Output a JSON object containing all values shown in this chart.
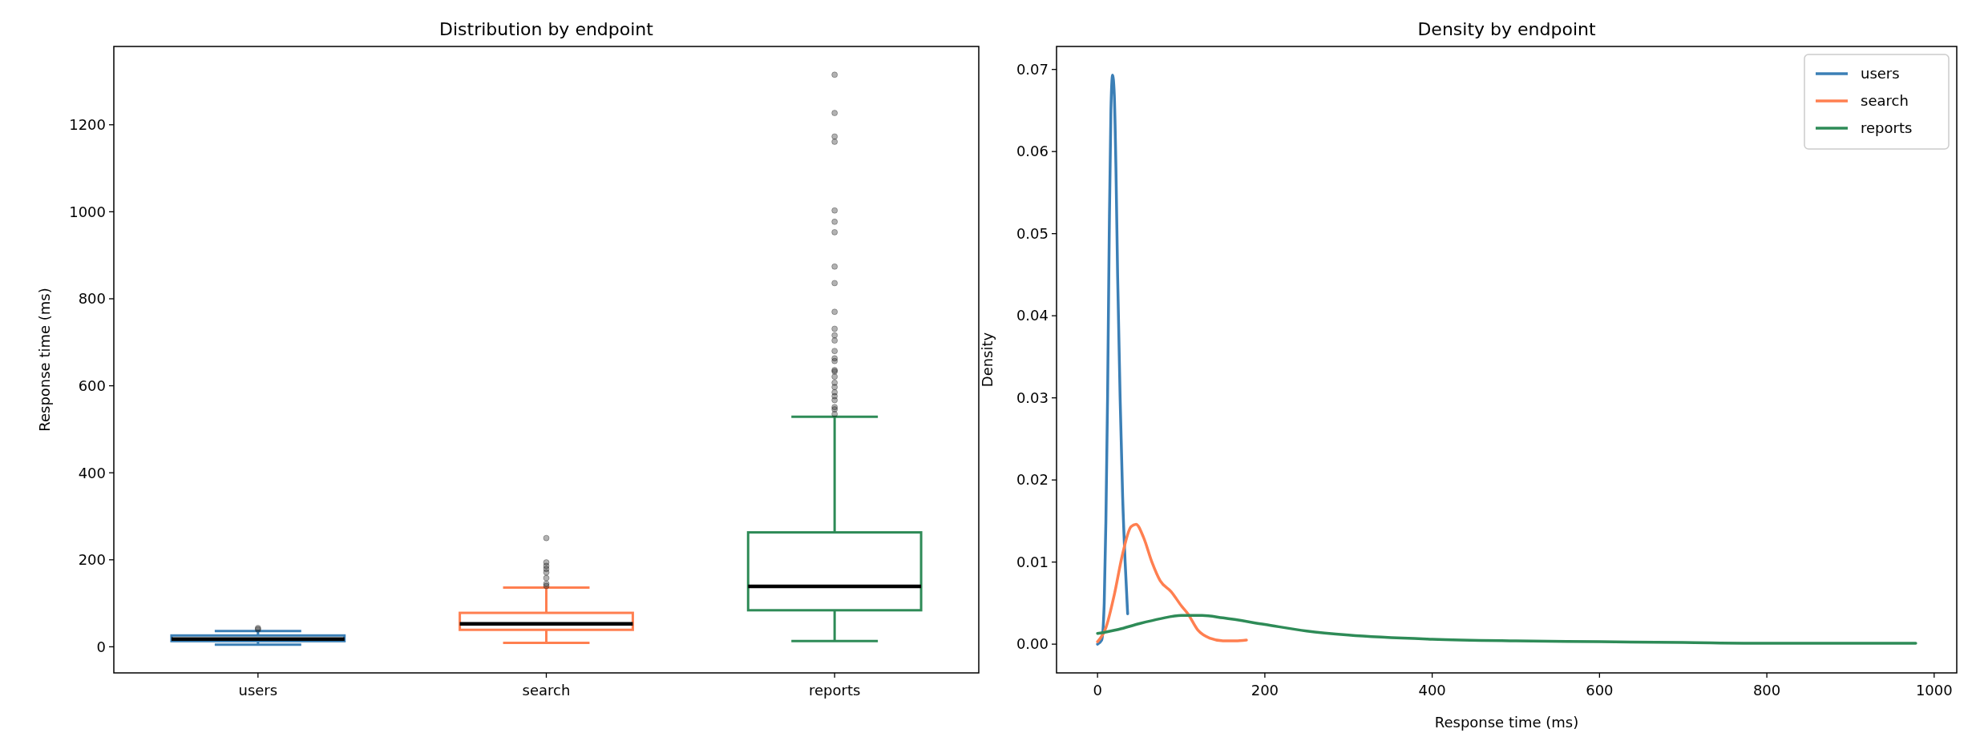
{
  "chart_data": [
    {
      "type": "box",
      "title": "Distribution by endpoint",
      "ylabel": "Response time (ms)",
      "categories": [
        "users",
        "search",
        "reports"
      ],
      "colors": [
        "#3b7fb6",
        "#ff7f50",
        "#2e8b57"
      ],
      "boxes": [
        {
          "low": 5,
          "q1": 13,
          "median": 18,
          "q3": 26,
          "high": 36,
          "outliers": [
            40,
            43
          ]
        },
        {
          "low": 9,
          "q1": 39,
          "median": 53,
          "q3": 78,
          "high": 136,
          "outliers": [
            140,
            145,
            158,
            171,
            179,
            186,
            194,
            250
          ]
        },
        {
          "low": 13,
          "q1": 84,
          "median": 139,
          "q3": 263,
          "high": 529,
          "outliers": [
            535,
            546,
            551,
            567,
            576,
            585,
            597,
            607,
            621,
            633,
            636,
            657,
            663,
            680,
            704,
            716,
            731,
            770,
            836,
            874,
            953,
            977,
            1003,
            1161,
            1173,
            1227,
            1315
          ]
        }
      ],
      "ylim": [
        -60,
        1380
      ],
      "yticks": [
        0,
        200,
        400,
        600,
        800,
        1000,
        1200
      ],
      "grid": false
    },
    {
      "type": "line",
      "title": "Density by endpoint",
      "xlabel": "Response time (ms)",
      "ylabel": "Density",
      "legend": "top right",
      "grid": false,
      "xlim": [
        -49,
        1027
      ],
      "xticks": [
        0,
        200,
        400,
        600,
        800,
        1000
      ],
      "ylim": [
        -0.0035,
        0.0728
      ],
      "yticks": [
        {
          "value": 0,
          "label": "0.00"
        },
        {
          "value": 0.01,
          "label": "0.01"
        },
        {
          "value": 0.02,
          "label": "0.02"
        },
        {
          "value": 0.03,
          "label": "0.03"
        },
        {
          "value": 0.04,
          "label": "0.04"
        },
        {
          "value": 0.05,
          "label": "0.05"
        },
        {
          "value": 0.06,
          "label": "0.06"
        },
        {
          "value": 0.07,
          "label": "0.07"
        }
      ],
      "series": [
        {
          "name": "users",
          "color": "#3b7fb6",
          "x": [
            0,
            5,
            8,
            10,
            12,
            14,
            16,
            18,
            20,
            22,
            24,
            27,
            30,
            33,
            36
          ],
          "values": [
            0,
            0.0005,
            0.005,
            0.015,
            0.03,
            0.05,
            0.065,
            0.0693,
            0.067,
            0.058,
            0.045,
            0.03,
            0.018,
            0.01,
            0.0037
          ]
        },
        {
          "name": "search",
          "color": "#ff7f50",
          "x": [
            0,
            10,
            20,
            30,
            40,
            46,
            55,
            65,
            75,
            88,
            100,
            108,
            120,
            135,
            150,
            165,
            178
          ],
          "values": [
            0.0003,
            0.002,
            0.006,
            0.011,
            0.0143,
            0.0146,
            0.013,
            0.01,
            0.0077,
            0.0064,
            0.0047,
            0.0037,
            0.0017,
            0.0007,
            0.0004,
            0.0004,
            0.0005
          ]
        },
        {
          "name": "reports",
          "color": "#2e8b57",
          "x": [
            0,
            25,
            50,
            75,
            100,
            125,
            150,
            200,
            250,
            300,
            400,
            500,
            600,
            700,
            800,
            900,
            978
          ],
          "values": [
            0.0013,
            0.0018,
            0.0025,
            0.0031,
            0.0035,
            0.0035,
            0.0032,
            0.0024,
            0.0016,
            0.0011,
            0.0006,
            0.0004,
            0.0003,
            0.0002,
            0.0001,
            0.0001,
            0.0001
          ]
        }
      ]
    }
  ]
}
